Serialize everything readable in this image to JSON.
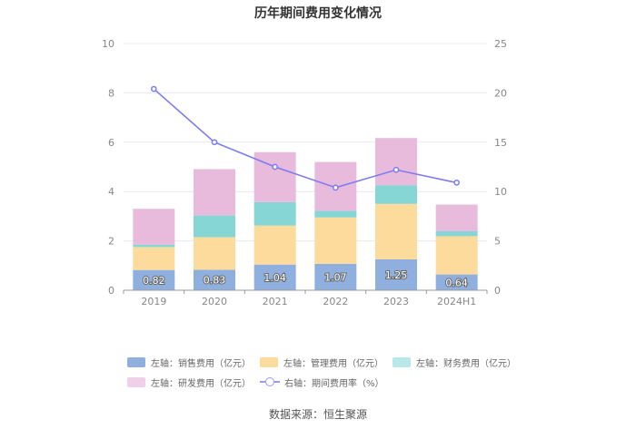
{
  "chart_data": {
    "type": "bar",
    "title": "历年期间费用变化情况",
    "categories": [
      "2019",
      "2020",
      "2021",
      "2022",
      "2023",
      "2024H1"
    ],
    "stacked": true,
    "left_axis": {
      "ylim": [
        0,
        10
      ],
      "ticks": [
        "0",
        "2",
        "4",
        "6",
        "8",
        "10"
      ]
    },
    "right_axis": {
      "ylim": [
        0,
        25
      ],
      "ticks": [
        "0",
        "5",
        "10",
        "15",
        "20",
        "25"
      ]
    },
    "series": [
      {
        "name": "左轴：销售费用（亿元）",
        "axis": "left",
        "type": "bar",
        "color": "#8fb0de",
        "values": [
          0.82,
          0.83,
          1.04,
          1.07,
          1.25,
          0.64
        ],
        "labels": [
          "0.82",
          "0.83",
          "1.04",
          "1.07",
          "1.25",
          "0.64"
        ]
      },
      {
        "name": "左轴：管理费用（亿元）",
        "axis": "left",
        "type": "bar",
        "color": "#fddb9c",
        "values": [
          0.93,
          1.32,
          1.58,
          1.88,
          2.25,
          1.55
        ]
      },
      {
        "name": "左轴：财务费用（亿元）",
        "axis": "left",
        "type": "bar",
        "color": "#86d6d6",
        "values": [
          0.1,
          0.88,
          0.95,
          0.27,
          0.75,
          0.2
        ]
      },
      {
        "name": "左轴：研发费用（亿元）",
        "axis": "left",
        "type": "bar",
        "color": "#e8bbdc",
        "values": [
          1.45,
          1.88,
          2.03,
          1.98,
          1.92,
          1.08
        ]
      },
      {
        "name": "右轴：期间费用率（%）",
        "axis": "right",
        "type": "line",
        "color": "#7b7cf0",
        "values": [
          20.4,
          15.0,
          12.5,
          10.4,
          12.2,
          10.9
        ]
      }
    ]
  },
  "legend": {
    "items": [
      {
        "label": "左轴：销售费用（亿元）",
        "color": "#8fb0de"
      },
      {
        "label": "左轴：管理费用（亿元）",
        "color": "#fddb9c"
      },
      {
        "label": "左轴：财务费用（亿元）",
        "color": "#b9e8e8"
      },
      {
        "label": "左轴：研发费用（亿元）",
        "color": "#f0d0e8"
      },
      {
        "label": "右轴：期间费用率（%）",
        "color": "#9a9cf4"
      }
    ]
  },
  "source": "数据来源：恒生聚源"
}
